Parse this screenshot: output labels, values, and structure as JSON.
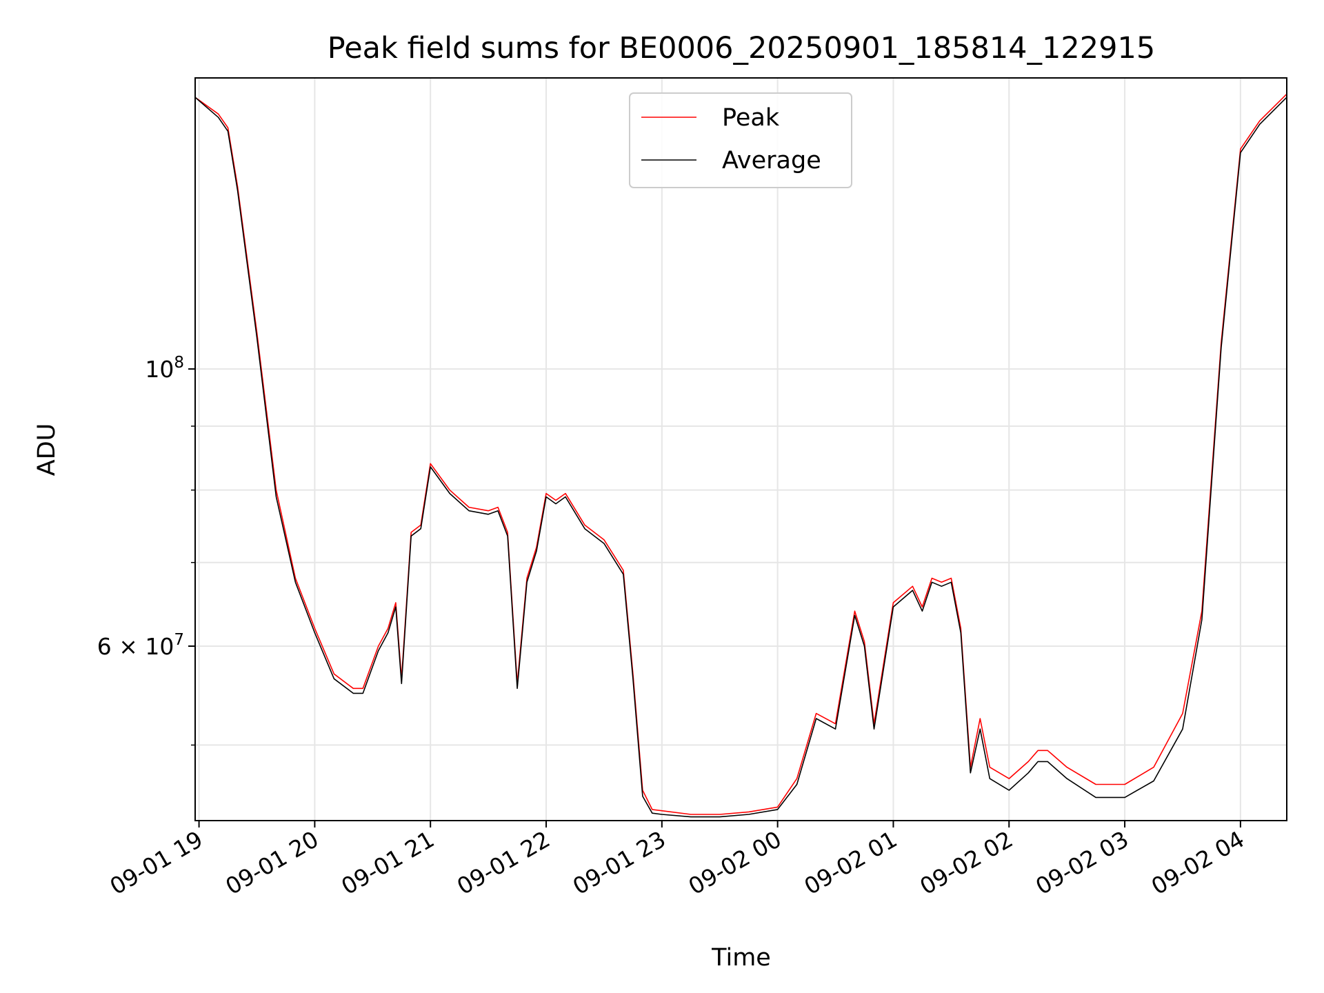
{
  "chart_data": {
    "type": "line",
    "title": "Peak field sums for BE0006_20250901_185814_122915",
    "xlabel": "Time",
    "ylabel": "ADU",
    "y_scale": "log",
    "xlim": [
      "2025-09-01 18:58",
      "2025-09-02 04:24"
    ],
    "ylim": [
      43500000,
      171000000
    ],
    "x_ticks": [
      "09-01 19",
      "09-01 20",
      "09-01 21",
      "09-01 22",
      "09-01 23",
      "09-02 00",
      "09-02 01",
      "09-02 02",
      "09-02 03",
      "09-02 04"
    ],
    "y_ticks": [
      {
        "value": 100000000,
        "base": "10",
        "exp": "8",
        "coef": ""
      },
      {
        "value": 60000000,
        "base": "10",
        "exp": "7",
        "coef": "6 × "
      }
    ],
    "grid": true,
    "legend_position": "upper center",
    "x": [
      "2025-09-01 18:58",
      "2025-09-01 19:10",
      "2025-09-01 19:15",
      "2025-09-01 19:20",
      "2025-09-01 19:30",
      "2025-09-01 19:40",
      "2025-09-01 19:50",
      "2025-09-01 20:00",
      "2025-09-01 20:10",
      "2025-09-01 20:20",
      "2025-09-01 20:25",
      "2025-09-01 20:33",
      "2025-09-01 20:38",
      "2025-09-01 20:42",
      "2025-09-01 20:45",
      "2025-09-01 20:50",
      "2025-09-01 20:55",
      "2025-09-01 21:00",
      "2025-09-01 21:10",
      "2025-09-01 21:20",
      "2025-09-01 21:30",
      "2025-09-01 21:35",
      "2025-09-01 21:40",
      "2025-09-01 21:45",
      "2025-09-01 21:50",
      "2025-09-01 21:55",
      "2025-09-01 22:00",
      "2025-09-01 22:05",
      "2025-09-01 22:10",
      "2025-09-01 22:20",
      "2025-09-01 22:30",
      "2025-09-01 22:40",
      "2025-09-01 22:45",
      "2025-09-01 22:50",
      "2025-09-01 22:55",
      "2025-09-01 23:00",
      "2025-09-01 23:15",
      "2025-09-01 23:30",
      "2025-09-01 23:45",
      "2025-09-02 00:00",
      "2025-09-02 00:10",
      "2025-09-02 00:20",
      "2025-09-02 00:30",
      "2025-09-02 00:40",
      "2025-09-02 00:45",
      "2025-09-02 00:50",
      "2025-09-02 01:00",
      "2025-09-02 01:10",
      "2025-09-02 01:15",
      "2025-09-02 01:20",
      "2025-09-02 01:25",
      "2025-09-02 01:30",
      "2025-09-02 01:35",
      "2025-09-02 01:40",
      "2025-09-02 01:45",
      "2025-09-02 01:50",
      "2025-09-02 02:00",
      "2025-09-02 02:10",
      "2025-09-02 02:15",
      "2025-09-02 02:20",
      "2025-09-02 02:30",
      "2025-09-02 02:45",
      "2025-09-02 03:00",
      "2025-09-02 03:15",
      "2025-09-02 03:30",
      "2025-09-02 03:40",
      "2025-09-02 03:50",
      "2025-09-02 04:00",
      "2025-09-02 04:10",
      "2025-09-02 04:24"
    ],
    "series": [
      {
        "name": "Peak",
        "color": "#ff0000",
        "values": [
          165000000,
          160000000,
          156000000,
          140000000,
          107000000,
          80000000,
          68000000,
          62000000,
          57000000,
          55500000,
          55500000,
          60000000,
          62000000,
          65000000,
          56500000,
          74000000,
          75000000,
          84000000,
          80000000,
          77500000,
          77000000,
          77500000,
          74000000,
          56000000,
          68000000,
          72000000,
          79500000,
          78500000,
          79500000,
          75000000,
          73000000,
          69000000,
          57000000,
          46000000,
          44400000,
          44300000,
          44000000,
          44000000,
          44200000,
          44600000,
          47000000,
          53000000,
          52000000,
          64000000,
          60500000,
          52000000,
          65000000,
          67000000,
          64500000,
          68000000,
          67500000,
          68000000,
          62000000,
          48000000,
          52500000,
          48000000,
          47000000,
          48500000,
          49500000,
          49500000,
          48000000,
          46500000,
          46500000,
          48000000,
          53000000,
          64000000,
          105000000,
          150000000,
          158000000,
          166000000
        ]
      },
      {
        "name": "Average",
        "color": "#000000",
        "values": [
          165000000,
          159000000,
          155000000,
          139000000,
          106000000,
          79000000,
          67500000,
          61500000,
          56500000,
          55000000,
          55000000,
          59500000,
          61500000,
          64500000,
          56000000,
          73500000,
          74500000,
          83500000,
          79500000,
          77000000,
          76500000,
          77000000,
          73500000,
          55500000,
          67500000,
          71500000,
          79000000,
          78000000,
          79000000,
          74500000,
          72500000,
          68500000,
          56500000,
          45500000,
          44100000,
          44000000,
          43800000,
          43800000,
          44000000,
          44400000,
          46500000,
          52500000,
          51500000,
          63500000,
          60000000,
          51500000,
          64500000,
          66500000,
          64000000,
          67500000,
          67000000,
          67500000,
          61500000,
          47500000,
          51500000,
          47000000,
          46000000,
          47500000,
          48500000,
          48500000,
          47000000,
          45400000,
          45400000,
          46800000,
          51500000,
          63000000,
          104000000,
          149000000,
          157000000,
          165000000
        ]
      }
    ]
  }
}
